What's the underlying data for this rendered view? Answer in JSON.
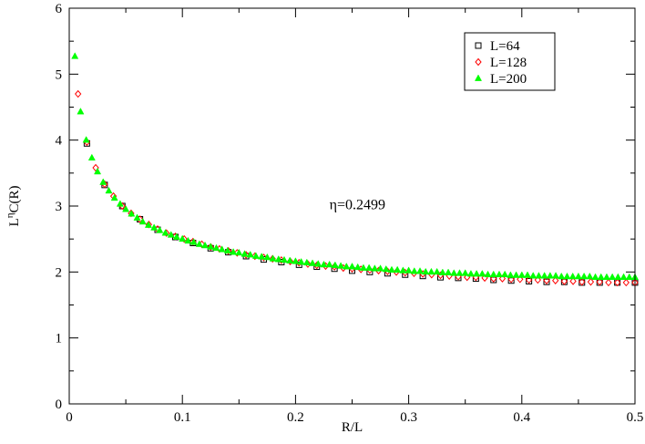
{
  "chart_data": {
    "type": "scatter",
    "xlabel": "R/L",
    "ylabel": {
      "base": "L",
      "superscript": "η",
      "rest": "C(R)"
    },
    "xlim": [
      0,
      0.5
    ],
    "ylim": [
      0,
      6
    ],
    "x_ticks": [
      0,
      0.1,
      0.2,
      0.3,
      0.4,
      0.5
    ],
    "x_tick_labels": [
      "0",
      "0.1",
      "0.2",
      "0.3",
      "0.4",
      "0.5"
    ],
    "y_ticks": [
      0,
      1,
      2,
      3,
      4,
      5,
      6
    ],
    "y_tick_labels": [
      "0",
      "1",
      "2",
      "3",
      "4",
      "5",
      "6"
    ],
    "grid": false,
    "legend_position": "top-right",
    "annotation": {
      "text": "η=0.2499",
      "x": 0.23,
      "y": 2.95
    },
    "series": [
      {
        "name": "L=64",
        "marker": "square",
        "color": "#000000",
        "x": [
          0.0156,
          0.0313,
          0.0469,
          0.0625,
          0.0781,
          0.0938,
          0.1094,
          0.125,
          0.1406,
          0.1563,
          0.1719,
          0.1875,
          0.2031,
          0.2188,
          0.2344,
          0.25,
          0.2656,
          0.2813,
          0.2969,
          0.3125,
          0.3281,
          0.3438,
          0.3594,
          0.375,
          0.3906,
          0.4063,
          0.4219,
          0.4375,
          0.4531,
          0.4688,
          0.4844,
          0.5
        ],
        "y": [
          3.95,
          3.32,
          3.0,
          2.8,
          2.64,
          2.53,
          2.44,
          2.36,
          2.3,
          2.24,
          2.19,
          2.15,
          2.11,
          2.08,
          2.05,
          2.02,
          2.0,
          1.98,
          1.96,
          1.94,
          1.92,
          1.91,
          1.9,
          1.88,
          1.87,
          1.86,
          1.85,
          1.85,
          1.84,
          1.84,
          1.84,
          1.84
        ]
      },
      {
        "name": "L=128",
        "marker": "diamond",
        "color": "#ff0000",
        "x": [
          0.0078,
          0.0156,
          0.0234,
          0.0313,
          0.0391,
          0.0469,
          0.0547,
          0.0625,
          0.0703,
          0.0781,
          0.0859,
          0.0938,
          0.1016,
          0.1094,
          0.1172,
          0.125,
          0.1328,
          0.1406,
          0.1484,
          0.1563,
          0.1641,
          0.1719,
          0.1797,
          0.1875,
          0.1953,
          0.2031,
          0.2109,
          0.2188,
          0.2266,
          0.2344,
          0.2422,
          0.25,
          0.2578,
          0.2656,
          0.2734,
          0.2813,
          0.2891,
          0.2969,
          0.3047,
          0.3125,
          0.3203,
          0.3281,
          0.3359,
          0.3438,
          0.3516,
          0.3594,
          0.3672,
          0.375,
          0.3828,
          0.3906,
          0.3984,
          0.4063,
          0.4141,
          0.4219,
          0.4297,
          0.4375,
          0.4453,
          0.4531,
          0.4609,
          0.4688,
          0.4766,
          0.4844,
          0.4922,
          0.5
        ],
        "y": [
          4.7,
          3.97,
          3.58,
          3.33,
          3.15,
          3.0,
          2.89,
          2.8,
          2.72,
          2.65,
          2.59,
          2.54,
          2.5,
          2.46,
          2.42,
          2.38,
          2.35,
          2.32,
          2.29,
          2.26,
          2.24,
          2.22,
          2.2,
          2.18,
          2.16,
          2.14,
          2.12,
          2.1,
          2.09,
          2.08,
          2.06,
          2.05,
          2.04,
          2.03,
          2.02,
          2.01,
          2.0,
          1.99,
          1.98,
          1.97,
          1.96,
          1.95,
          1.94,
          1.93,
          1.92,
          1.92,
          1.91,
          1.9,
          1.9,
          1.89,
          1.89,
          1.88,
          1.88,
          1.87,
          1.87,
          1.86,
          1.86,
          1.85,
          1.85,
          1.85,
          1.84,
          1.84,
          1.84,
          1.84
        ]
      },
      {
        "name": "L=200",
        "marker": "triangle",
        "color": "#00ff00",
        "x": [
          0.005,
          0.01,
          0.015,
          0.02,
          0.025,
          0.03,
          0.035,
          0.04,
          0.045,
          0.05,
          0.055,
          0.06,
          0.065,
          0.07,
          0.075,
          0.08,
          0.085,
          0.09,
          0.095,
          0.1,
          0.105,
          0.11,
          0.115,
          0.12,
          0.125,
          0.13,
          0.135,
          0.14,
          0.145,
          0.15,
          0.155,
          0.16,
          0.165,
          0.17,
          0.175,
          0.18,
          0.185,
          0.19,
          0.195,
          0.2,
          0.205,
          0.21,
          0.215,
          0.22,
          0.225,
          0.23,
          0.235,
          0.24,
          0.245,
          0.25,
          0.255,
          0.26,
          0.265,
          0.27,
          0.275,
          0.28,
          0.285,
          0.29,
          0.295,
          0.3,
          0.305,
          0.31,
          0.315,
          0.32,
          0.325,
          0.33,
          0.335,
          0.34,
          0.345,
          0.35,
          0.355,
          0.36,
          0.365,
          0.37,
          0.375,
          0.38,
          0.385,
          0.39,
          0.395,
          0.4,
          0.405,
          0.41,
          0.415,
          0.42,
          0.425,
          0.43,
          0.435,
          0.44,
          0.445,
          0.45,
          0.455,
          0.46,
          0.465,
          0.47,
          0.475,
          0.48,
          0.485,
          0.49,
          0.495,
          0.5
        ],
        "y": [
          5.27,
          4.43,
          4.0,
          3.73,
          3.52,
          3.36,
          3.23,
          3.12,
          3.03,
          2.95,
          2.88,
          2.82,
          2.76,
          2.71,
          2.67,
          2.63,
          2.59,
          2.56,
          2.53,
          2.5,
          2.47,
          2.45,
          2.42,
          2.4,
          2.38,
          2.36,
          2.34,
          2.32,
          2.3,
          2.29,
          2.27,
          2.26,
          2.24,
          2.23,
          2.22,
          2.2,
          2.19,
          2.18,
          2.17,
          2.16,
          2.15,
          2.14,
          2.13,
          2.12,
          2.11,
          2.11,
          2.1,
          2.09,
          2.08,
          2.08,
          2.07,
          2.06,
          2.06,
          2.05,
          2.05,
          2.04,
          2.03,
          2.03,
          2.02,
          2.02,
          2.01,
          2.01,
          2.0,
          2.0,
          2.0,
          1.99,
          1.99,
          1.98,
          1.98,
          1.98,
          1.97,
          1.97,
          1.97,
          1.96,
          1.96,
          1.96,
          1.96,
          1.95,
          1.95,
          1.95,
          1.95,
          1.94,
          1.94,
          1.94,
          1.94,
          1.94,
          1.93,
          1.93,
          1.93,
          1.93,
          1.93,
          1.93,
          1.92,
          1.92,
          1.92,
          1.92,
          1.92,
          1.92,
          1.92,
          1.92
        ]
      }
    ]
  }
}
